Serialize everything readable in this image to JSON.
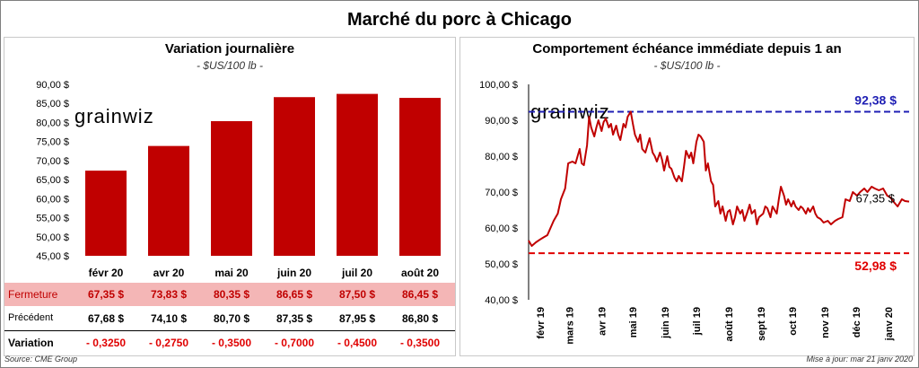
{
  "header": {
    "title": "Marché du porc à Chicago"
  },
  "left": {
    "title": "Variation  journalière",
    "unit": "- $US/100 lb -",
    "watermark": "grainwiz",
    "table": {
      "rows": [
        {
          "label": "Fermeture",
          "values": [
            "67,35  $",
            "73,83  $",
            "80,35  $",
            "86,65  $",
            "87,50  $",
            "86,45  $"
          ]
        },
        {
          "label": "Précédent",
          "values": [
            "67,68  $",
            "74,10  $",
            "80,70  $",
            "87,35  $",
            "87,95  $",
            "86,80  $"
          ]
        },
        {
          "label": "Variation",
          "values": [
            "- 0,3250",
            "- 0,2750",
            "- 0,3500",
            "- 0,7000",
            "- 0,4500",
            "- 0,3500"
          ]
        }
      ]
    }
  },
  "right": {
    "title": "Comportement  échéance immédiate depuis 1 an",
    "unit": "- $US/100 lb -",
    "watermark": "grainwiz",
    "high_label": "92,38 $",
    "low_label": "52,98 $",
    "last_label": "67,35 $"
  },
  "footer": {
    "source": "Source: CME Group",
    "updated": "Mise à jour: mar 21 janv 2020"
  },
  "colors": {
    "bar": "#c00000",
    "line": "#c00000",
    "high": "#1f1fb4",
    "low": "#e00000",
    "fermeture_bg": "#f4b6b6"
  },
  "chart_data": [
    {
      "type": "bar",
      "title": "Variation  journalière",
      "subtitle": "- $US/100 lb -",
      "categories": [
        "févr 20",
        "avr 20",
        "mai 20",
        "juin 20",
        "juil 20",
        "août 20"
      ],
      "values": [
        67.35,
        73.83,
        80.35,
        86.65,
        87.5,
        86.45
      ],
      "ylim": [
        45,
        90
      ],
      "yticks": [
        "45,00 $",
        "50,00 $",
        "55,00 $",
        "60,00 $",
        "65,00 $",
        "70,00 $",
        "75,00 $",
        "80,00 $",
        "85,00 $",
        "90,00 $"
      ],
      "grid": false,
      "legend": "none"
    },
    {
      "type": "line",
      "title": "Comportement  échéance immédiate depuis 1 an",
      "subtitle": "- $US/100 lb -",
      "ylim": [
        40,
        100
      ],
      "yticks": [
        "40,00 $",
        "50,00 $",
        "60,00 $",
        "70,00 $",
        "80,00 $",
        "90,00 $",
        "100,00 $"
      ],
      "xticks": [
        "févr 19",
        "mars 19",
        "avr 19",
        "mai 19",
        "juin 19",
        "juil 19",
        "août 19",
        "sept 19",
        "oct 19",
        "nov 19",
        "déc 19",
        "janv 20"
      ],
      "x_range": [
        "2019-01-21",
        "2020-01-21"
      ],
      "reference_lines": [
        {
          "label": "92,38 $",
          "value": 92.38
        },
        {
          "label": "52,98 $",
          "value": 52.98
        }
      ],
      "series": [
        {
          "points": [
            [
              "2019-01-21",
              56.5
            ],
            [
              "2019-01-24",
              55.0
            ],
            [
              "2019-01-28",
              56.0
            ],
            [
              "2019-02-01",
              56.8
            ],
            [
              "2019-02-05",
              57.5
            ],
            [
              "2019-02-08",
              58.0
            ],
            [
              "2019-02-11",
              60.0
            ],
            [
              "2019-02-14",
              62.0
            ],
            [
              "2019-02-18",
              64.0
            ],
            [
              "2019-02-21",
              68.0
            ],
            [
              "2019-02-25",
              71.0
            ],
            [
              "2019-02-28",
              78.0
            ],
            [
              "2019-03-04",
              78.5
            ],
            [
              "2019-03-07",
              78.0
            ],
            [
              "2019-03-09",
              80.0
            ],
            [
              "2019-03-11",
              82.0
            ],
            [
              "2019-03-13",
              78.0
            ],
            [
              "2019-03-15",
              77.5
            ],
            [
              "2019-03-18",
              83.0
            ],
            [
              "2019-03-20",
              91.0
            ],
            [
              "2019-03-22",
              88.0
            ],
            [
              "2019-03-25",
              85.5
            ],
            [
              "2019-03-27",
              88.0
            ],
            [
              "2019-03-29",
              90.0
            ],
            [
              "2019-04-01",
              87.0
            ],
            [
              "2019-04-03",
              89.5
            ],
            [
              "2019-04-05",
              90.5
            ],
            [
              "2019-04-08",
              88.0
            ],
            [
              "2019-04-10",
              89.0
            ],
            [
              "2019-04-12",
              86.0
            ],
            [
              "2019-04-15",
              88.5
            ],
            [
              "2019-04-17",
              86.0
            ],
            [
              "2019-04-19",
              84.5
            ],
            [
              "2019-04-22",
              89.0
            ],
            [
              "2019-04-24",
              88.0
            ],
            [
              "2019-04-26",
              91.0
            ],
            [
              "2019-04-29",
              92.4
            ],
            [
              "2019-05-01",
              89.0
            ],
            [
              "2019-05-03",
              86.0
            ],
            [
              "2019-05-06",
              84.0
            ],
            [
              "2019-05-08",
              86.0
            ],
            [
              "2019-05-10",
              82.0
            ],
            [
              "2019-05-13",
              81.0
            ],
            [
              "2019-05-15",
              83.0
            ],
            [
              "2019-05-17",
              85.0
            ],
            [
              "2019-05-20",
              81.0
            ],
            [
              "2019-05-22",
              80.0
            ],
            [
              "2019-05-24",
              78.5
            ],
            [
              "2019-05-27",
              81.0
            ],
            [
              "2019-05-29",
              79.0
            ],
            [
              "2019-05-31",
              76.0
            ],
            [
              "2019-06-03",
              80.0
            ],
            [
              "2019-06-05",
              77.0
            ],
            [
              "2019-06-07",
              76.5
            ],
            [
              "2019-06-10",
              74.0
            ],
            [
              "2019-06-12",
              73.0
            ],
            [
              "2019-06-14",
              74.5
            ],
            [
              "2019-06-17",
              73.0
            ],
            [
              "2019-06-19",
              77.0
            ],
            [
              "2019-06-21",
              81.5
            ],
            [
              "2019-06-24",
              79.5
            ],
            [
              "2019-06-26",
              81.0
            ],
            [
              "2019-06-28",
              78.0
            ],
            [
              "2019-07-01",
              84.0
            ],
            [
              "2019-07-03",
              86.0
            ],
            [
              "2019-07-05",
              85.5
            ],
            [
              "2019-07-08",
              84.0
            ],
            [
              "2019-07-10",
              76.0
            ],
            [
              "2019-07-12",
              78.0
            ],
            [
              "2019-07-15",
              73.0
            ],
            [
              "2019-07-17",
              72.0
            ],
            [
              "2019-07-19",
              66.0
            ],
            [
              "2019-07-22",
              67.5
            ],
            [
              "2019-07-24",
              64.0
            ],
            [
              "2019-07-26",
              66.0
            ],
            [
              "2019-07-29",
              62.0
            ],
            [
              "2019-07-31",
              64.5
            ],
            [
              "2019-08-02",
              65.0
            ],
            [
              "2019-08-05",
              61.0
            ],
            [
              "2019-08-07",
              63.0
            ],
            [
              "2019-08-09",
              66.0
            ],
            [
              "2019-08-12",
              64.0
            ],
            [
              "2019-08-14",
              65.0
            ],
            [
              "2019-08-16",
              62.0
            ],
            [
              "2019-08-19",
              64.5
            ],
            [
              "2019-08-21",
              66.5
            ],
            [
              "2019-08-23",
              64.0
            ],
            [
              "2019-08-26",
              65.0
            ],
            [
              "2019-08-28",
              61.0
            ],
            [
              "2019-08-30",
              63.0
            ],
            [
              "2019-09-03",
              64.0
            ],
            [
              "2019-09-05",
              66.0
            ],
            [
              "2019-09-07",
              65.5
            ],
            [
              "2019-09-10",
              63.0
            ],
            [
              "2019-09-12",
              66.0
            ],
            [
              "2019-09-16",
              64.0
            ],
            [
              "2019-09-18",
              68.0
            ],
            [
              "2019-09-20",
              71.5
            ],
            [
              "2019-09-23",
              69.0
            ],
            [
              "2019-09-25",
              66.5
            ],
            [
              "2019-09-27",
              68.0
            ],
            [
              "2019-09-30",
              66.0
            ],
            [
              "2019-10-02",
              67.5
            ],
            [
              "2019-10-04",
              66.0
            ],
            [
              "2019-10-07",
              65.0
            ],
            [
              "2019-10-09",
              66.0
            ],
            [
              "2019-10-11",
              65.5
            ],
            [
              "2019-10-14",
              64.0
            ],
            [
              "2019-10-16",
              65.5
            ],
            [
              "2019-10-18",
              64.5
            ],
            [
              "2019-10-21",
              66.0
            ],
            [
              "2019-10-23",
              64.0
            ],
            [
              "2019-10-25",
              63.0
            ],
            [
              "2019-10-28",
              62.5
            ],
            [
              "2019-10-31",
              61.5
            ],
            [
              "2019-11-04",
              62.0
            ],
            [
              "2019-11-07",
              61.0
            ],
            [
              "2019-11-11",
              62.0
            ],
            [
              "2019-11-14",
              62.5
            ],
            [
              "2019-11-18",
              63.0
            ],
            [
              "2019-11-21",
              68.0
            ],
            [
              "2019-11-25",
              67.5
            ],
            [
              "2019-11-28",
              70.0
            ],
            [
              "2019-12-02",
              69.0
            ],
            [
              "2019-12-05",
              70.0
            ],
            [
              "2019-12-09",
              71.0
            ],
            [
              "2019-12-12",
              70.0
            ],
            [
              "2019-12-16",
              71.5
            ],
            [
              "2019-12-19",
              71.0
            ],
            [
              "2019-12-23",
              70.5
            ],
            [
              "2019-12-27",
              71.0
            ],
            [
              "2019-12-31",
              69.0
            ],
            [
              "2020-01-03",
              68.5
            ],
            [
              "2020-01-07",
              67.0
            ],
            [
              "2020-01-10",
              66.0
            ],
            [
              "2020-01-14",
              68.0
            ],
            [
              "2020-01-17",
              67.5
            ],
            [
              "2020-01-21",
              67.35
            ]
          ]
        }
      ]
    }
  ]
}
